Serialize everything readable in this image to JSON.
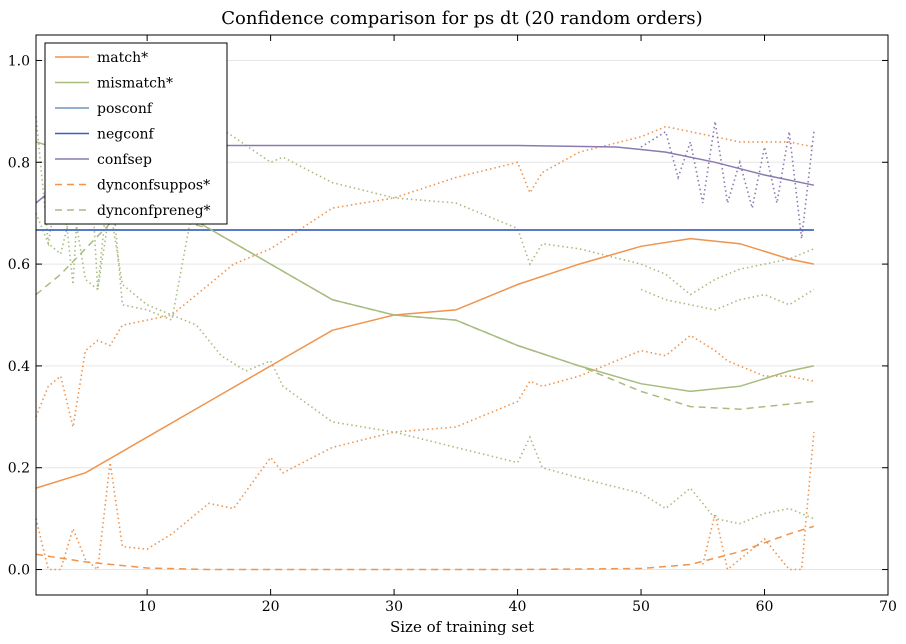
{
  "chart_data": {
    "type": "line",
    "title": "Confidence comparison for ps dt (20 random orders)",
    "xlabel": "Size of training set",
    "ylabel": "",
    "xlim": [
      1,
      70
    ],
    "ylim": [
      -0.05,
      1.05
    ],
    "xticks": [
      10,
      20,
      30,
      40,
      50,
      60,
      70
    ],
    "yticks": [
      0.0,
      0.2,
      0.4,
      0.6,
      0.8,
      1.0
    ],
    "ytick_labels": [
      "0.0",
      "0.2",
      "0.4",
      "0.6",
      "0.8",
      "1.0"
    ],
    "grid": "horizontal",
    "legend_position": "top-left",
    "series": [
      {
        "name": "match*",
        "color": "#f0944d",
        "style": "solid",
        "x": [
          1,
          5,
          10,
          15,
          20,
          25,
          30,
          35,
          40,
          45,
          50,
          54,
          58,
          62,
          64
        ],
        "y": [
          0.16,
          0.19,
          0.26,
          0.33,
          0.4,
          0.47,
          0.5,
          0.51,
          0.56,
          0.6,
          0.635,
          0.65,
          0.64,
          0.61,
          0.6
        ]
      },
      {
        "name": "mismatch*",
        "color": "#a8bc80",
        "style": "solid",
        "x": [
          1,
          5,
          10,
          15,
          20,
          25,
          30,
          35,
          40,
          45,
          50,
          54,
          58,
          62,
          64
        ],
        "y": [
          0.84,
          0.81,
          0.74,
          0.67,
          0.6,
          0.53,
          0.5,
          0.49,
          0.44,
          0.4,
          0.365,
          0.35,
          0.36,
          0.39,
          0.4
        ]
      },
      {
        "name": "posconf",
        "color": "#6f93c2",
        "style": "solid",
        "x": [
          1,
          64
        ],
        "y": [
          0.667,
          0.667
        ]
      },
      {
        "name": "negconf",
        "color": "#3b5fc0",
        "style": "solid",
        "x": [
          1,
          64
        ],
        "y": [
          0.667,
          0.667
        ]
      },
      {
        "name": "confsep",
        "color": "#8a7ab0",
        "style": "solid",
        "x": [
          1,
          5,
          8,
          10,
          20,
          30,
          40,
          48,
          52,
          56,
          60,
          64
        ],
        "y": [
          0.72,
          0.8,
          0.833,
          0.833,
          0.833,
          0.833,
          0.833,
          0.83,
          0.82,
          0.8,
          0.775,
          0.755
        ]
      },
      {
        "name": "dynconfsuppos*",
        "color": "#f0944d",
        "style": "dashed",
        "x": [
          1,
          5,
          10,
          15,
          20,
          30,
          40,
          50,
          54,
          58,
          62,
          64
        ],
        "y": [
          0.03,
          0.015,
          0.003,
          0.0,
          0.0,
          0.0,
          0.0,
          0.002,
          0.01,
          0.035,
          0.07,
          0.085
        ]
      },
      {
        "name": "dynconfpreneg*",
        "color": "#a8bc80",
        "style": "dashed",
        "x": [
          1,
          3,
          5,
          7,
          9,
          12,
          15,
          20,
          25,
          30,
          35,
          40,
          45,
          50,
          54,
          58,
          62,
          64
        ],
        "y": [
          0.54,
          0.58,
          0.63,
          0.68,
          0.7,
          0.69,
          0.67,
          0.6,
          0.53,
          0.5,
          0.49,
          0.44,
          0.4,
          0.35,
          0.32,
          0.315,
          0.325,
          0.33
        ]
      }
    ],
    "dotted_bounds": [
      {
        "color": "#f0944d",
        "x": [
          1,
          2,
          3,
          4,
          5,
          6,
          7,
          8,
          10,
          12,
          15,
          17,
          20,
          25,
          30,
          35,
          40,
          41,
          42,
          45,
          50,
          52,
          54,
          56,
          58,
          60,
          62,
          64
        ],
        "y": [
          0.3,
          0.36,
          0.38,
          0.28,
          0.43,
          0.45,
          0.44,
          0.48,
          0.49,
          0.5,
          0.56,
          0.6,
          0.63,
          0.71,
          0.73,
          0.77,
          0.8,
          0.74,
          0.78,
          0.82,
          0.85,
          0.87,
          0.86,
          0.85,
          0.84,
          0.84,
          0.84,
          0.83
        ]
      },
      {
        "color": "#f0944d",
        "x": [
          1,
          2,
          3,
          4,
          5,
          6,
          7,
          8,
          10,
          12,
          15,
          17,
          20,
          21,
          25,
          30,
          35,
          40,
          41,
          42,
          45,
          50,
          52,
          54,
          56,
          57,
          58,
          60,
          62,
          64
        ],
        "y": [
          0.1,
          0.0,
          0.0,
          0.08,
          0.02,
          0.0,
          0.21,
          0.045,
          0.04,
          0.07,
          0.13,
          0.12,
          0.22,
          0.19,
          0.24,
          0.27,
          0.28,
          0.33,
          0.37,
          0.36,
          0.38,
          0.43,
          0.42,
          0.46,
          0.43,
          0.41,
          0.4,
          0.38,
          0.38,
          0.37
        ]
      },
      {
        "color": "#f0944d",
        "x": [
          55,
          56,
          57,
          60,
          62,
          63,
          64
        ],
        "y": [
          0.01,
          0.11,
          0.0,
          0.06,
          0.0,
          0.0,
          0.27
        ]
      },
      {
        "color": "#a8bc80",
        "x": [
          1,
          2,
          3,
          4,
          5,
          6,
          7,
          8,
          10,
          12,
          14,
          16,
          18,
          20,
          21,
          25,
          30,
          35,
          40,
          41,
          42,
          45,
          50,
          52,
          54,
          56,
          58,
          60,
          62,
          64
        ],
        "y": [
          0.89,
          0.64,
          0.62,
          0.72,
          0.57,
          0.55,
          0.71,
          0.56,
          0.52,
          0.5,
          0.48,
          0.42,
          0.39,
          0.41,
          0.36,
          0.29,
          0.27,
          0.24,
          0.21,
          0.26,
          0.2,
          0.18,
          0.15,
          0.12,
          0.16,
          0.1,
          0.09,
          0.11,
          0.12,
          0.1
        ]
      },
      {
        "color": "#a8bc80",
        "x": [
          1,
          2,
          3,
          4,
          5,
          6,
          7,
          8,
          10,
          12,
          15,
          17,
          20,
          21,
          25,
          30,
          35,
          40,
          41,
          42,
          45,
          50,
          52,
          54,
          56,
          58,
          60,
          62,
          64
        ],
        "y": [
          0.7,
          0.64,
          0.79,
          0.56,
          0.98,
          0.55,
          0.79,
          0.52,
          0.51,
          0.49,
          0.88,
          0.85,
          0.8,
          0.81,
          0.76,
          0.73,
          0.72,
          0.67,
          0.6,
          0.64,
          0.63,
          0.6,
          0.58,
          0.54,
          0.57,
          0.59,
          0.6,
          0.61,
          0.63
        ]
      },
      {
        "color": "#a8bc80",
        "x": [
          50,
          52,
          54,
          56,
          58,
          60,
          62,
          64
        ],
        "y": [
          0.55,
          0.53,
          0.52,
          0.51,
          0.53,
          0.54,
          0.52,
          0.55
        ]
      },
      {
        "color": "#8a7ab0",
        "x": [
          50,
          52,
          53,
          54,
          55,
          56,
          57,
          58,
          59,
          60,
          61,
          62,
          63,
          64
        ],
        "y": [
          0.83,
          0.86,
          0.77,
          0.84,
          0.72,
          0.88,
          0.72,
          0.8,
          0.71,
          0.83,
          0.72,
          0.86,
          0.65,
          0.86
        ]
      }
    ]
  }
}
